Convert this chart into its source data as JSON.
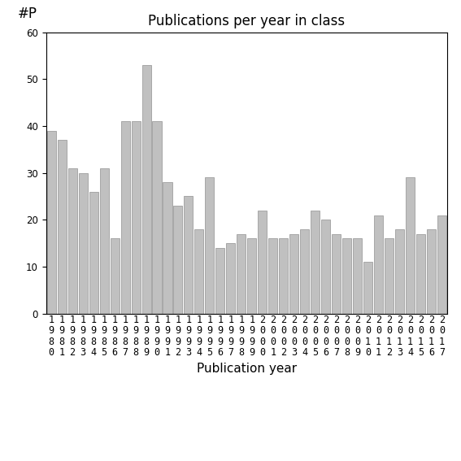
{
  "title": "Publications per year in class",
  "xlabel": "Publication year",
  "ylabel": "#P",
  "years": [
    "1980",
    "1981",
    "1982",
    "1983",
    "1984",
    "1985",
    "1986",
    "1987",
    "1988",
    "1989",
    "1990",
    "1991",
    "1992",
    "1993",
    "1994",
    "1995",
    "1996",
    "1997",
    "1998",
    "1999",
    "2000",
    "2001",
    "2002",
    "2003",
    "2004",
    "2005",
    "2006",
    "2007",
    "2008",
    "2009",
    "2010",
    "2011",
    "2012",
    "2013",
    "2014",
    "2015",
    "2016",
    "2017"
  ],
  "values": [
    39,
    37,
    31,
    30,
    26,
    31,
    16,
    41,
    41,
    53,
    41,
    28,
    23,
    25,
    18,
    29,
    14,
    15,
    17,
    16,
    22,
    16,
    16,
    17,
    18,
    22,
    20,
    17,
    16,
    16,
    11,
    21,
    16,
    18,
    29,
    17,
    18,
    21
  ],
  "bar_color": "#c0c0c0",
  "bar_edgecolor": "#909090",
  "ylim": [
    0,
    60
  ],
  "yticks": [
    0,
    10,
    20,
    30,
    40,
    50,
    60
  ],
  "background_color": "#ffffff",
  "title_fontsize": 12,
  "xlabel_fontsize": 11,
  "tick_fontsize": 8.5
}
